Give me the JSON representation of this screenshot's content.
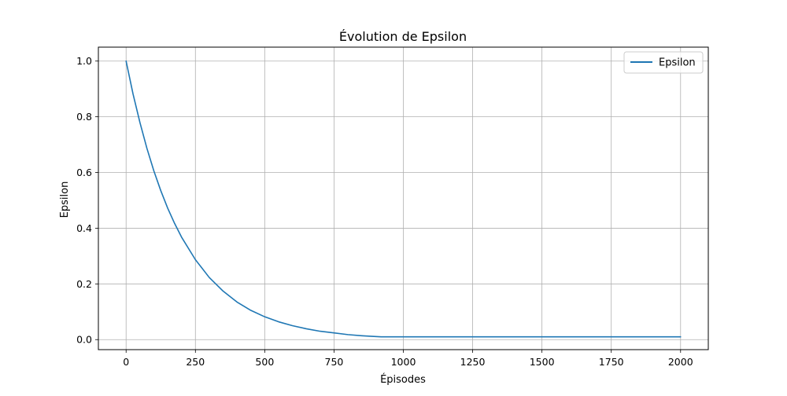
{
  "chart_data": {
    "type": "line",
    "title": "Évolution de Epsilon",
    "xlabel": "Épisodes",
    "ylabel": "Epsilon",
    "xlim": [
      -100,
      2100
    ],
    "ylim": [
      -0.036,
      1.05
    ],
    "xticks": [
      0,
      250,
      500,
      750,
      1000,
      1250,
      1500,
      1750,
      2000
    ],
    "xtick_labels": [
      "0",
      "250",
      "500",
      "750",
      "1000",
      "1250",
      "1500",
      "1750",
      "2000"
    ],
    "yticks": [
      0.0,
      0.2,
      0.4,
      0.6,
      0.8,
      1.0
    ],
    "ytick_labels": [
      "0.0",
      "0.2",
      "0.4",
      "0.6",
      "0.8",
      "1.0"
    ],
    "grid": true,
    "legend": {
      "position": "top-right",
      "entries": [
        "Epsilon"
      ]
    },
    "series": [
      {
        "name": "Epsilon",
        "color": "#1f77b4",
        "x": [
          0,
          25,
          50,
          75,
          100,
          125,
          150,
          175,
          200,
          250,
          300,
          350,
          400,
          450,
          500,
          550,
          600,
          650,
          700,
          750,
          800,
          850,
          900,
          920,
          1000,
          1250,
          1500,
          1750,
          2000
        ],
        "y": [
          1.0,
          0.882,
          0.779,
          0.687,
          0.606,
          0.535,
          0.472,
          0.417,
          0.368,
          0.287,
          0.223,
          0.174,
          0.135,
          0.105,
          0.082,
          0.064,
          0.05,
          0.039,
          0.03,
          0.024,
          0.018,
          0.014,
          0.011,
          0.01,
          0.01,
          0.01,
          0.01,
          0.01,
          0.01
        ]
      }
    ]
  }
}
